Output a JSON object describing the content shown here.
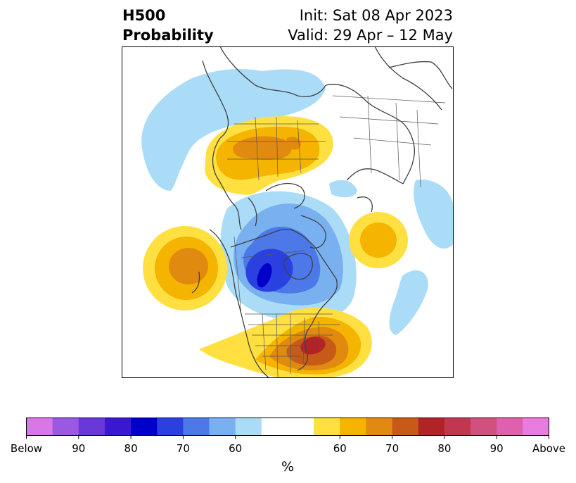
{
  "title": {
    "variable": "H500",
    "type": "Probability",
    "init": "Init: Sat 08 Apr 2023",
    "valid": "Valid: 29 Apr – 12 May"
  },
  "colorbar": {
    "unit": "%",
    "colors": [
      "#d878e8",
      "#9c58e0",
      "#6a38d8",
      "#3a18d0",
      "#0000c8",
      "#2a40e0",
      "#4c78e8",
      "#78b0f0",
      "#aadcf8",
      "#ffffff",
      "#ffe040",
      "#f4b400",
      "#e08a10",
      "#c85a18",
      "#b02428",
      "#c03850",
      "#d05080",
      "#e060b0",
      "#e87ce0"
    ],
    "labels": [
      {
        "text": "Below",
        "slot": 0
      },
      {
        "text": "90",
        "slot": 2
      },
      {
        "text": "80",
        "slot": 4
      },
      {
        "text": "70",
        "slot": 6
      },
      {
        "text": "60",
        "slot": 8
      },
      {
        "text": "60",
        "slot": 12
      },
      {
        "text": "70",
        "slot": 14
      },
      {
        "text": "80",
        "slot": 16
      },
      {
        "text": "90",
        "slot": 18
      },
      {
        "text": "Above",
        "slot": 20
      }
    ]
  },
  "map": {
    "projection": "north-polar-stereographic",
    "region": "North America / North Atlantic / Arctic",
    "features": [
      {
        "kind": "below",
        "region": "Central Canada (Hudson Bay area)",
        "max_probability": "90"
      },
      {
        "kind": "above",
        "region": "Eastern United States",
        "max_probability": "80"
      },
      {
        "kind": "above",
        "region": "Northern Russia / Siberia",
        "max_probability": "70"
      },
      {
        "kind": "above",
        "region": "Northeast Pacific",
        "max_probability": "70"
      },
      {
        "kind": "above",
        "region": "North Atlantic",
        "max_probability": "65"
      }
    ]
  }
}
